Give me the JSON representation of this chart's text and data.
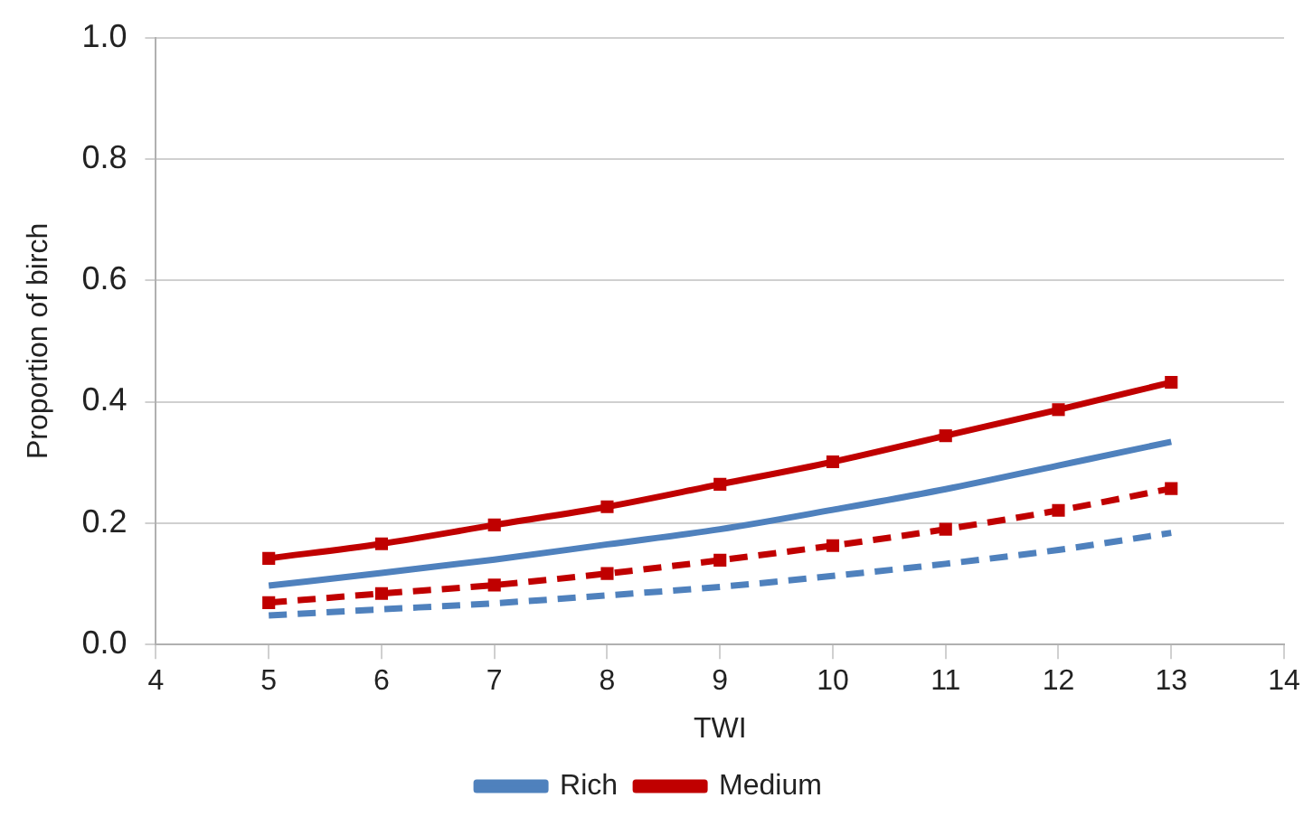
{
  "chart_data": {
    "type": "line",
    "xlabel": "TWI",
    "ylabel": "Proportion of birch",
    "x": [
      5,
      6,
      7,
      8,
      9,
      10,
      11,
      12,
      13
    ],
    "series": [
      {
        "name": "Rich",
        "color": "#4f81bd",
        "marker": "none",
        "line_style": "solid",
        "values": [
          0.097,
          0.118,
          0.14,
          0.165,
          0.19,
          0.222,
          0.256,
          0.295,
          0.334
        ]
      },
      {
        "name": "Medium",
        "color": "#c00000",
        "marker": "square",
        "line_style": "solid",
        "values": [
          0.142,
          0.166,
          0.197,
          0.227,
          0.264,
          0.301,
          0.344,
          0.387,
          0.432
        ]
      },
      {
        "color": "#4f81bd",
        "marker": "none",
        "line_style": "dashed",
        "values": [
          0.048,
          0.058,
          0.068,
          0.081,
          0.095,
          0.113,
          0.133,
          0.156,
          0.184
        ]
      },
      {
        "color": "#c00000",
        "marker": "square",
        "line_style": "dashed",
        "values": [
          0.069,
          0.084,
          0.098,
          0.117,
          0.139,
          0.163,
          0.19,
          0.221,
          0.257
        ]
      }
    ],
    "xlim": [
      4,
      14
    ],
    "xticks": [
      4,
      5,
      6,
      7,
      8,
      9,
      10,
      11,
      12,
      13,
      14
    ],
    "ylim": [
      0,
      1
    ],
    "yticks": [
      {
        "value": 0,
        "label": "0.0"
      },
      {
        "value": 0.2,
        "label": "0.2"
      },
      {
        "value": 0.4,
        "label": "0.4"
      },
      {
        "value": 0.6,
        "label": "0.6"
      },
      {
        "value": 0.8,
        "label": "0.8"
      },
      {
        "value": 1,
        "label": "1.0"
      }
    ],
    "grid": "y",
    "legend": "bottom"
  }
}
